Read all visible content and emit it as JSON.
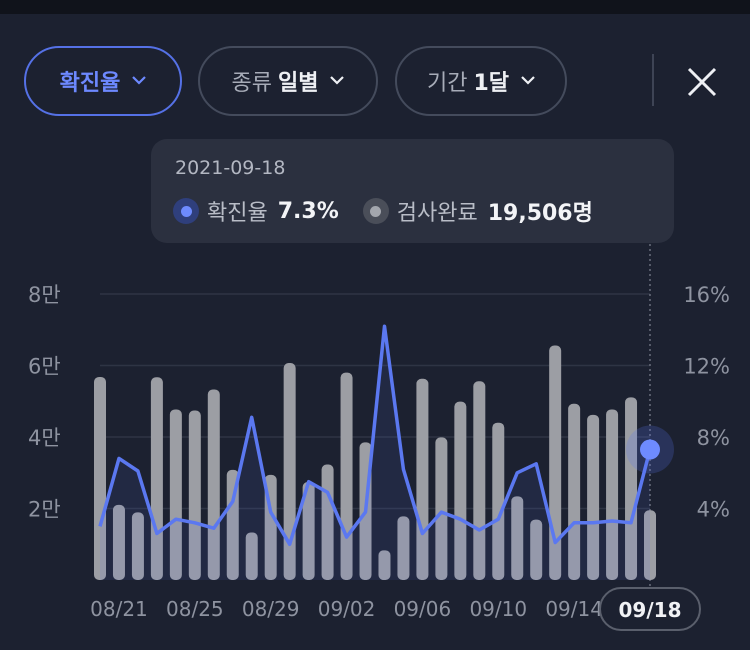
{
  "filters": {
    "metric": {
      "label": "확진율"
    },
    "type": {
      "label": "종류",
      "value": "일별"
    },
    "period": {
      "label": "기간",
      "value": "1달"
    }
  },
  "tooltip": {
    "date": "2021-09-18",
    "positivity": {
      "name": "확진율",
      "value": "7.3%"
    },
    "tests": {
      "name": "검사완료",
      "value": "19,506명"
    }
  },
  "colors": {
    "accent": "#5b78f0",
    "bar": "#9c9ea4",
    "background": "#1c2130"
  },
  "chart_data": {
    "type": "bar",
    "x": [
      "08/20",
      "08/21",
      "08/22",
      "08/23",
      "08/24",
      "08/25",
      "08/26",
      "08/27",
      "08/28",
      "08/29",
      "08/30",
      "08/31",
      "09/01",
      "09/02",
      "09/03",
      "09/04",
      "09/05",
      "09/06",
      "09/07",
      "09/08",
      "09/09",
      "09/10",
      "09/11",
      "09/12",
      "09/13",
      "09/14",
      "09/15",
      "09/16",
      "09/17",
      "09/18"
    ],
    "x_tick_labels": [
      "08/21",
      "08/25",
      "08/29",
      "09/02",
      "09/06",
      "09/10",
      "09/14",
      "09/18"
    ],
    "highlighted_x": "09/18",
    "series": [
      {
        "name": "검사완료",
        "kind": "bar",
        "axis": "left",
        "values": [
          56800,
          21000,
          18900,
          56700,
          47700,
          47400,
          53300,
          30800,
          13300,
          29400,
          60700,
          27400,
          32300,
          58000,
          38500,
          8300,
          17800,
          56300,
          39900,
          49900,
          55600,
          44000,
          23400,
          16900,
          65600,
          49300,
          46200,
          47700,
          51100,
          19506
        ]
      },
      {
        "name": "확진율",
        "kind": "line",
        "axis": "right",
        "values": [
          3.0,
          6.8,
          6.1,
          2.6,
          3.4,
          3.2,
          2.9,
          4.4,
          9.1,
          3.8,
          2.0,
          5.5,
          4.9,
          2.4,
          3.8,
          14.2,
          6.2,
          2.6,
          3.8,
          3.4,
          2.8,
          3.4,
          6.0,
          6.5,
          2.1,
          3.2,
          3.2,
          3.3,
          3.2,
          7.3
        ]
      }
    ],
    "y_left": {
      "ticks": [
        "2만",
        "4만",
        "6만",
        "8만"
      ],
      "ylim": [
        0,
        80000
      ]
    },
    "y_right": {
      "ticks": [
        "4%",
        "8%",
        "12%",
        "16%"
      ],
      "ylim": [
        0,
        16
      ]
    },
    "grid": true,
    "title": "",
    "xlabel": "",
    "ylabel": ""
  }
}
